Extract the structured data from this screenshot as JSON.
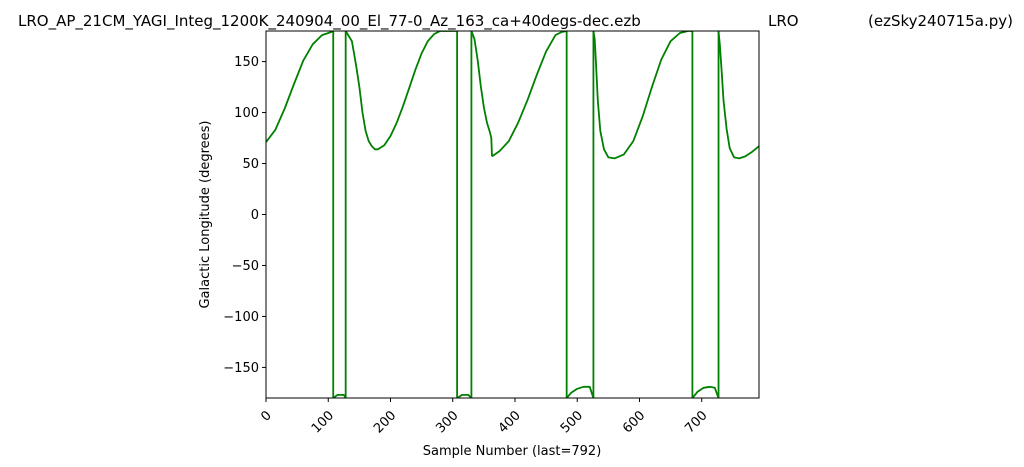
{
  "header": {
    "filename": "LRO_AP_21CM_YAGI_Integ_1200K_240904_00_El_77-0_Az_163_ca+40degs-dec.ezb",
    "station": "LRO",
    "program": "(ezSky240715a.py)"
  },
  "chart_data": {
    "type": "line",
    "xlabel": "Sample Number (last=792)",
    "ylabel": "Galactic Longitude (degrees)",
    "xlim": [
      0,
      792
    ],
    "ylim": [
      -180,
      180
    ],
    "xticks": [
      0,
      100,
      200,
      300,
      400,
      500,
      600,
      700
    ],
    "yticks": [
      150,
      100,
      50,
      0,
      -50,
      -100,
      -150
    ],
    "grid": false,
    "color": "#008000",
    "series": [
      {
        "name": "",
        "segments": [
          {
            "x": [
              0,
              15,
              30,
              45,
              60,
              75,
              90,
              105,
              108
            ],
            "y": [
              71,
              83,
              104,
              128,
              151,
              167,
              176,
              179,
              180
            ]
          },
          {
            "x": [
              108,
              115,
              125,
              128
            ],
            "y": [
              -180,
              -177,
              -177,
              -180
            ]
          },
          {
            "x": [
              128,
              133,
              138,
              142,
              145,
              150,
              155,
              160,
              165,
              170,
              175,
              180,
              190,
              200,
              210,
              220,
              230,
              240,
              250,
              260,
              270,
              280,
              290,
              300,
              307
            ],
            "y": [
              180,
              175,
              170,
              156,
              145,
              125,
              100,
              82,
              72,
              67,
              64,
              64,
              68,
              77,
              90,
              106,
              124,
              142,
              158,
              170,
              177,
              180,
              180,
              180,
              180
            ]
          },
          {
            "x": [
              307,
              315,
              325,
              330
            ],
            "y": [
              -180,
              -177,
              -177,
              -180
            ]
          },
          {
            "x": [
              330,
              335,
              340,
              345,
              350,
              355,
              360,
              362,
              363
            ],
            "y": [
              180,
              172,
              152,
              126,
              105,
              90,
              80,
              75,
              57
            ]
          },
          {
            "x": [
              363,
              375,
              390,
              405,
              420,
              435,
              450,
              465,
              475,
              483
            ],
            "y": [
              57,
              62,
              72,
              90,
              112,
              137,
              160,
              176,
              179,
              180
            ]
          },
          {
            "x": [
              483,
              490,
              500,
              510,
              520,
              526
            ],
            "y": [
              -180,
              -175,
              -171,
              -169,
              -169,
              -180
            ]
          },
          {
            "x": [
              526,
              528,
              530,
              533,
              537,
              543,
              550,
              560,
              575,
              590,
              605,
              620,
              635,
              650,
              665,
              678,
              685
            ],
            "y": [
              180,
              172,
              150,
              112,
              82,
              64,
              56,
              55,
              59,
              72,
              96,
              125,
              152,
              170,
              178,
              180,
              180
            ]
          },
          {
            "x": [
              685,
              693,
              703,
              713,
              721,
              727
            ],
            "y": [
              -180,
              -174,
              -170,
              -169,
              -170,
              -180
            ]
          },
          {
            "x": [
              727,
              729,
              732,
              735,
              740,
              745,
              752,
              760,
              770,
              780,
              792
            ],
            "y": [
              180,
              167,
              140,
              112,
              84,
              65,
              56,
              55,
              57,
              61,
              67
            ]
          }
        ],
        "verticals": [
          108,
          128,
          307,
          330,
          483,
          526,
          685,
          727
        ]
      }
    ]
  }
}
